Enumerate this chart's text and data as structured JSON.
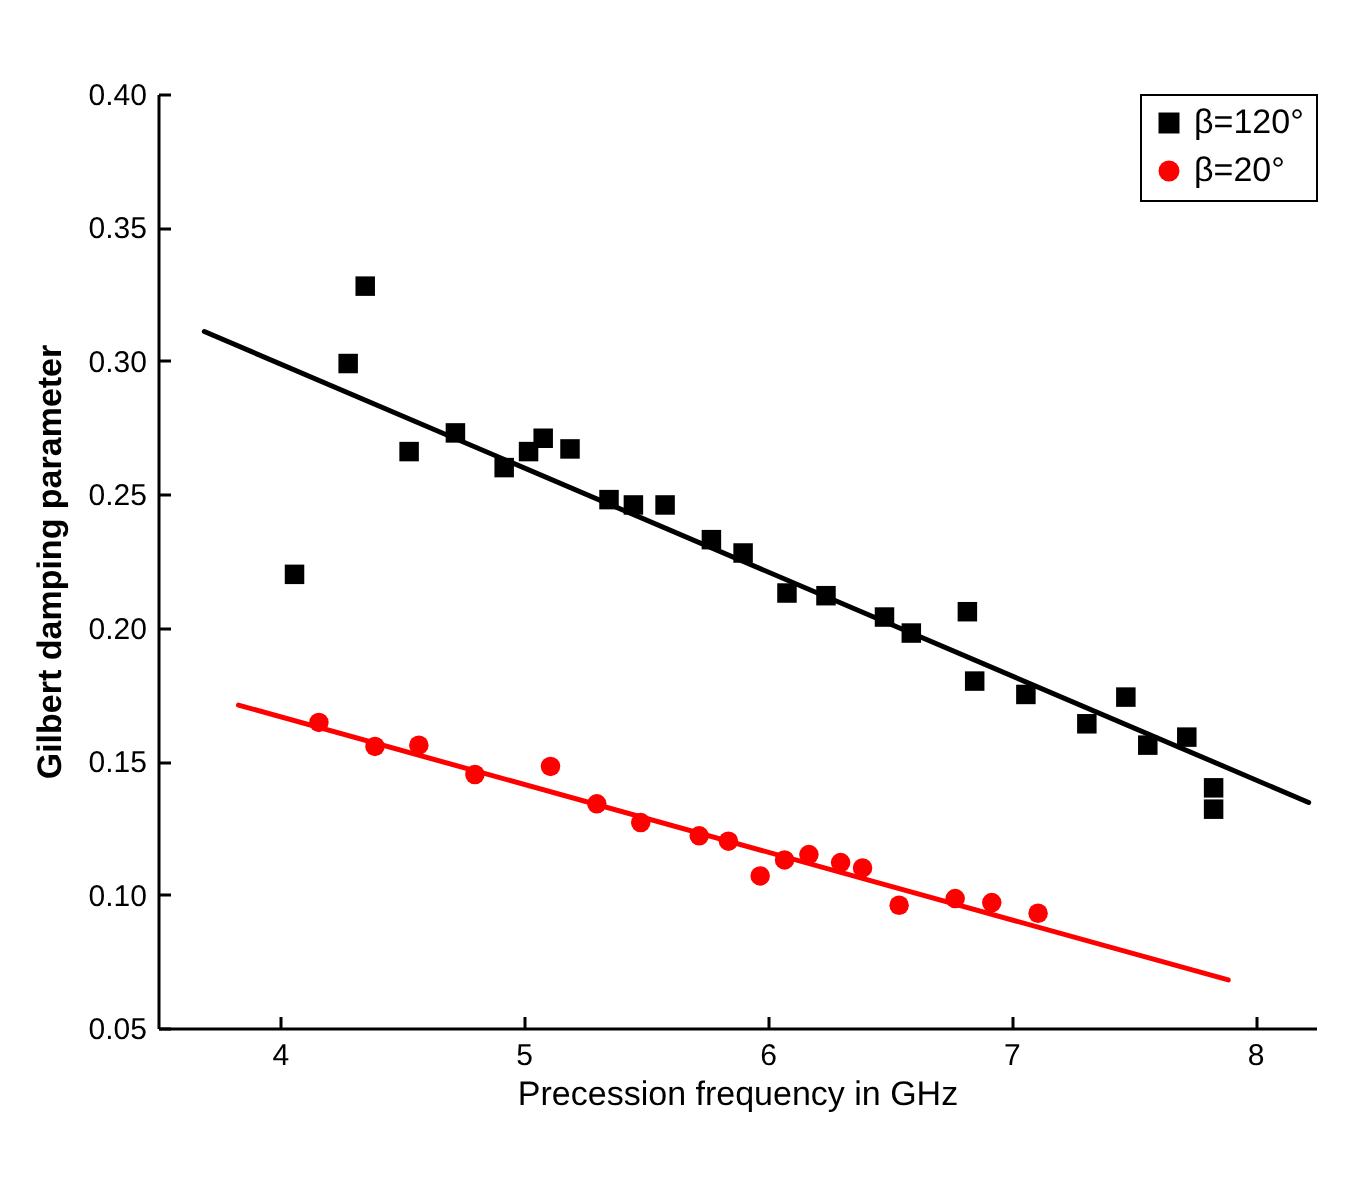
{
  "chart_data": {
    "type": "scatter",
    "xlabel": "Precession frequency in GHz",
    "ylabel": "Gilbert damping parameter",
    "xlim": [
      3.5,
      8.25
    ],
    "xticks": [
      4,
      5,
      6,
      7,
      8
    ],
    "ylim": [
      0.05,
      0.4
    ],
    "yticks": [
      {
        "value": 0.05,
        "label": "0.05"
      },
      {
        "value": 0.1,
        "label": "0.10"
      },
      {
        "value": 0.15,
        "label": "0.15"
      },
      {
        "value": 0.2,
        "label": "0.20"
      },
      {
        "value": 0.25,
        "label": "0.25"
      },
      {
        "value": 0.3,
        "label": "0.30"
      },
      {
        "value": 0.35,
        "label": "0.35"
      },
      {
        "value": 0.4,
        "label": "0.40"
      }
    ],
    "legend": "top right",
    "grid": false,
    "series": [
      {
        "name": "β=120°",
        "color": "#000000",
        "marker": "square",
        "x": [
          4.06,
          4.28,
          4.35,
          4.53,
          4.72,
          4.92,
          5.02,
          5.08,
          5.19,
          5.35,
          5.45,
          5.58,
          5.77,
          5.9,
          6.08,
          6.24,
          6.48,
          6.59,
          6.82,
          6.85,
          7.06,
          7.31,
          7.47,
          7.56,
          7.72,
          7.83,
          7.83
        ],
        "values": [
          0.22,
          0.299,
          0.328,
          0.266,
          0.273,
          0.26,
          0.266,
          0.271,
          0.267,
          0.248,
          0.246,
          0.246,
          0.233,
          0.228,
          0.213,
          0.212,
          0.204,
          0.198,
          0.206,
          0.18,
          0.175,
          0.164,
          0.174,
          0.156,
          0.159,
          0.14,
          0.132
        ]
      },
      {
        "name": "β=20°",
        "color": "#ff0000",
        "marker": "circle",
        "x": [
          4.16,
          4.39,
          4.57,
          4.8,
          5.11,
          5.3,
          5.48,
          5.72,
          5.84,
          5.97,
          6.07,
          6.17,
          6.3,
          6.39,
          6.54,
          6.77,
          6.92,
          7.11
        ],
        "values": [
          0.1645,
          0.1555,
          0.156,
          0.145,
          0.148,
          0.134,
          0.127,
          0.122,
          0.12,
          0.107,
          0.113,
          0.115,
          0.112,
          0.11,
          0.096,
          0.0985,
          0.097,
          0.093
        ]
      },
      {
        "type": "line",
        "color": "#000000",
        "x": [
          3.69,
          8.22
        ],
        "values": [
          0.311,
          0.1345
        ]
      },
      {
        "type": "line",
        "color": "#ff0000",
        "x": [
          3.83,
          7.89
        ],
        "values": [
          0.171,
          0.068
        ]
      }
    ]
  }
}
